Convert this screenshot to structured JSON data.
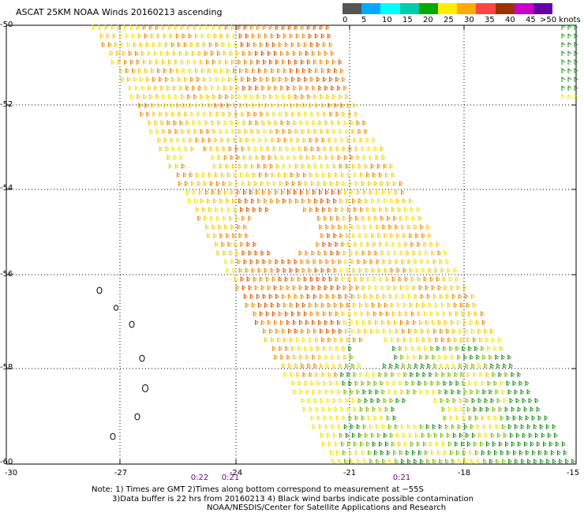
{
  "title": "ASCAT 25KM NOAA Winds 20160213 ascending",
  "legend": {
    "labels": [
      "0",
      "5",
      "10",
      "15",
      "20",
      "25",
      "30",
      "35",
      "40",
      "45",
      ">50 knots"
    ],
    "colors": [
      "#555555",
      "#00aaff",
      "#00ffff",
      "#00ccaa",
      "#00aa00",
      "#ffee00",
      "#ffaa00",
      "#ff4444",
      "#993300",
      "#cc00cc",
      "#6600aa"
    ]
  },
  "axes": {
    "lat_labels": [
      "-50",
      "-52",
      "-54",
      "-56",
      "-58",
      "-60"
    ],
    "lon_labels": [
      "-30",
      "-27",
      "-24",
      "-21",
      "-18",
      "-15"
    ],
    "lat_values": [
      -50,
      -52,
      -54,
      -56,
      -58,
      -60
    ],
    "lon_values": [
      -30,
      -27,
      -24,
      -21,
      -18,
      -15
    ],
    "lat_range": [
      -50,
      -60
    ],
    "lon_range": [
      -30,
      -15
    ],
    "grid": true
  },
  "pass_times": [
    "0:22",
    "0:21",
    "0:21"
  ],
  "notes": {
    "line1": "Note: 1) Times are GMT  2)Times along bottom correspond to measurement at −55S",
    "line2": "3)Data buffer is 22 hrs from 20160213  4) Black wind barbs indicate possible contamination",
    "line3": "NOAA/NESDIS/Center for Satellite Applications and Research"
  },
  "colors": {
    "yellow": "#f2c800",
    "light_yellow": "#f5e000",
    "orange": "#e88a00",
    "dark_orange": "#d45a00",
    "green": "#1a8a1a",
    "light_green": "#7ab800",
    "island": "#000000"
  }
}
